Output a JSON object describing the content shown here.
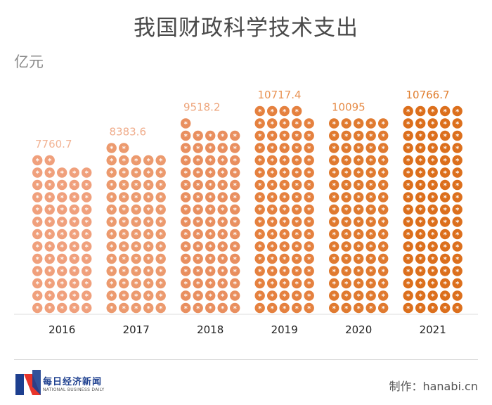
{
  "title": "我国财政科学技术支出",
  "unit_label": "亿元",
  "footer": {
    "brand_cn": "每日经济新闻",
    "brand_en": "NATIONAL BUSINESS DAILY",
    "credit": "制作：hanabi.cn"
  },
  "chart_data": {
    "type": "bar",
    "title": "我国财政科学技术支出",
    "ylabel": "亿元",
    "xlabel": "",
    "categories": [
      "2016",
      "2017",
      "2018",
      "2019",
      "2020",
      "2021"
    ],
    "values": [
      7760.7,
      8383.6,
      9518.2,
      10717.4,
      10095,
      10766.7
    ],
    "value_labels": [
      "7760.7",
      "8383.6",
      "9518.2",
      "10717.4",
      "10095",
      "10766.7"
    ],
    "icon_counts": [
      62,
      67,
      76,
      84,
      80,
      85
    ],
    "icon_symbol": "*",
    "grid": false,
    "legend": "none",
    "colors": [
      "#f0a07c",
      "#ec9a6e",
      "#e98f5f",
      "#e5813f",
      "#e07a2f",
      "#dc6f1c"
    ],
    "label_colors": [
      "#f2b394",
      "#f0ad8c",
      "#eda378",
      "#e99354",
      "#e68a44",
      "#e07d2d"
    ]
  }
}
